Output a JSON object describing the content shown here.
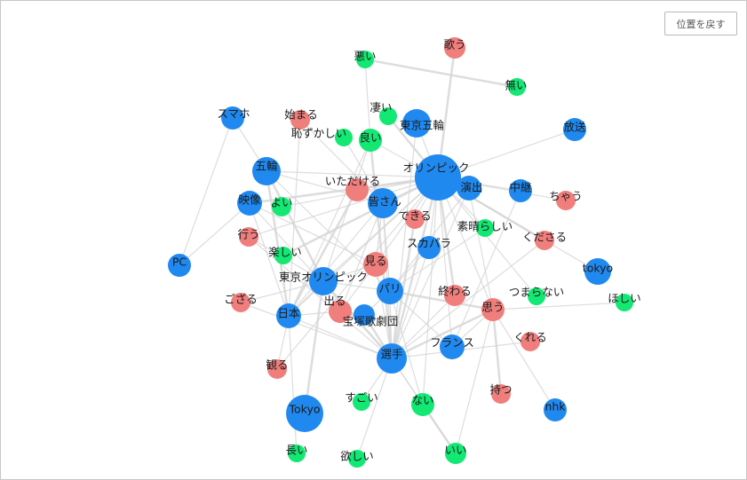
{
  "controls": {
    "reset_position_label": "位置を戻す"
  },
  "colors": {
    "noun": "#2089f0",
    "verb": "#ef7e7c",
    "adjective": "#12e873",
    "edge": "#d4d4d4"
  },
  "nodes": [
    {
      "label": "悪い",
      "group": "adjective"
    },
    {
      "label": "歌う",
      "group": "verb"
    },
    {
      "label": "無い",
      "group": "adjective"
    },
    {
      "label": "スマホ",
      "group": "noun"
    },
    {
      "label": "始まる",
      "group": "verb"
    },
    {
      "label": "凄い",
      "group": "adjective"
    },
    {
      "label": "東京五輪",
      "group": "noun"
    },
    {
      "label": "放送",
      "group": "noun"
    },
    {
      "label": "恥ずかしい",
      "group": "adjective"
    },
    {
      "label": "良い",
      "group": "adjective"
    },
    {
      "label": "五輪",
      "group": "noun"
    },
    {
      "label": "オリンピック",
      "group": "noun"
    },
    {
      "label": "演出",
      "group": "noun"
    },
    {
      "label": "中継",
      "group": "noun"
    },
    {
      "label": "ちゃう",
      "group": "verb"
    },
    {
      "label": "いただける",
      "group": "verb"
    },
    {
      "label": "皆さん",
      "group": "noun"
    },
    {
      "label": "映像",
      "group": "noun"
    },
    {
      "label": "よい",
      "group": "adjective"
    },
    {
      "label": "できる",
      "group": "verb"
    },
    {
      "label": "素晴らしい",
      "group": "adjective"
    },
    {
      "label": "くださる",
      "group": "verb"
    },
    {
      "label": "行う",
      "group": "verb"
    },
    {
      "label": "楽しい",
      "group": "adjective"
    },
    {
      "label": "スカパラ",
      "group": "noun"
    },
    {
      "label": "見る",
      "group": "verb"
    },
    {
      "label": "PC",
      "group": "noun"
    },
    {
      "label": "tokyo",
      "group": "noun"
    },
    {
      "label": "東京オリンピック",
      "group": "noun"
    },
    {
      "label": "パリ",
      "group": "noun"
    },
    {
      "label": "終わる",
      "group": "verb"
    },
    {
      "label": "つまらない",
      "group": "adjective"
    },
    {
      "label": "ほしい",
      "group": "adjective"
    },
    {
      "label": "ござる",
      "group": "verb"
    },
    {
      "label": "思う",
      "group": "verb"
    },
    {
      "label": "日本",
      "group": "noun"
    },
    {
      "label": "出る",
      "group": "verb"
    },
    {
      "label": "宝塚歌劇団",
      "group": "noun"
    },
    {
      "label": "フランス",
      "group": "noun"
    },
    {
      "label": "くれる",
      "group": "verb"
    },
    {
      "label": "選手",
      "group": "noun"
    },
    {
      "label": "観る",
      "group": "verb"
    },
    {
      "label": "持つ",
      "group": "verb"
    },
    {
      "label": "すごい",
      "group": "adjective"
    },
    {
      "label": "ない",
      "group": "adjective"
    },
    {
      "label": "Tokyo",
      "group": "noun"
    },
    {
      "label": "nhk",
      "group": "noun"
    },
    {
      "label": "長い",
      "group": "adjective"
    },
    {
      "label": "欲しい",
      "group": "adjective"
    },
    {
      "label": "いい",
      "group": "adjective"
    }
  ]
}
